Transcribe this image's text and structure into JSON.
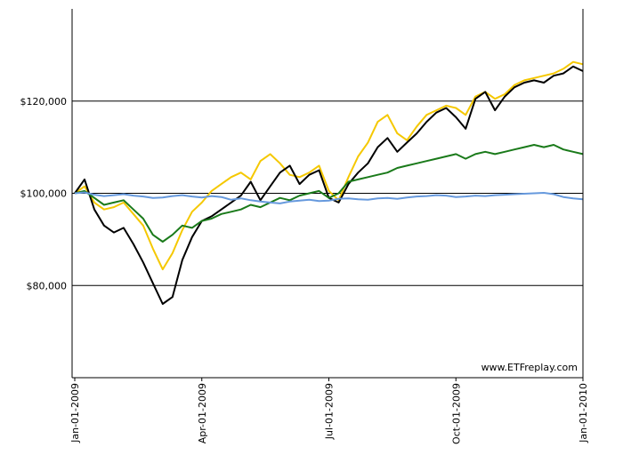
{
  "chart_data": {
    "type": "line",
    "title": "",
    "xlabel": "",
    "ylabel": "",
    "xlim": [
      "Jan-01-2009",
      "Jan-01-2010"
    ],
    "ylim": [
      60000,
      140000
    ],
    "ytick_values": [
      80000,
      100000,
      120000
    ],
    "ytick_labels": [
      "$80,000",
      "$100,000",
      "$120,000"
    ],
    "xtick_labels": [
      "Jan-01-2009",
      "Apr-01-2009",
      "Jul-01-2009",
      "Oct-01-2009",
      "Jan-01-2010"
    ],
    "grid": "horizontal",
    "watermark": "www.ETFreplay.com",
    "x": [
      "Jan-01-2009",
      "Jan-08-2009",
      "Jan-15-2009",
      "Jan-22-2009",
      "Jan-29-2009",
      "Feb-05-2009",
      "Feb-12-2009",
      "Feb-19-2009",
      "Feb-26-2009",
      "Mar-05-2009",
      "Mar-12-2009",
      "Mar-19-2009",
      "Mar-26-2009",
      "Apr-02-2009",
      "Apr-09-2009",
      "Apr-16-2009",
      "Apr-23-2009",
      "Apr-30-2009",
      "May-07-2009",
      "May-14-2009",
      "May-21-2009",
      "May-28-2009",
      "Jun-04-2009",
      "Jun-11-2009",
      "Jun-18-2009",
      "Jun-25-2009",
      "Jul-02-2009",
      "Jul-09-2009",
      "Jul-16-2009",
      "Jul-23-2009",
      "Jul-30-2009",
      "Aug-06-2009",
      "Aug-13-2009",
      "Aug-20-2009",
      "Aug-27-2009",
      "Sep-03-2009",
      "Sep-10-2009",
      "Sep-17-2009",
      "Sep-24-2009",
      "Oct-01-2009",
      "Oct-08-2009",
      "Oct-15-2009",
      "Oct-22-2009",
      "Oct-29-2009",
      "Nov-05-2009",
      "Nov-12-2009",
      "Nov-19-2009",
      "Nov-26-2009",
      "Dec-03-2009",
      "Dec-10-2009",
      "Dec-17-2009",
      "Dec-24-2009",
      "Dec-31-2009"
    ],
    "series": [
      {
        "color": "#f5c800",
        "values": [
          100000,
          101500,
          98000,
          96500,
          97000,
          98000,
          95500,
          93000,
          88000,
          83500,
          87000,
          92000,
          96000,
          98000,
          100500,
          102000,
          103500,
          104500,
          103000,
          107000,
          108500,
          106500,
          104000,
          103500,
          104500,
          106000,
          100500,
          98500,
          103500,
          108000,
          111000,
          115500,
          117000,
          113000,
          111500,
          114500,
          117000,
          118000,
          119000,
          118500,
          117000,
          121000,
          122000,
          120500,
          121500,
          123500,
          124500,
          125000,
          125500,
          126000,
          127000,
          128500,
          128000
        ]
      },
      {
        "color": "#000000",
        "values": [
          100000,
          103000,
          96500,
          93000,
          91500,
          92500,
          89000,
          85000,
          80500,
          76000,
          77500,
          85500,
          90500,
          94000,
          95000,
          96500,
          98000,
          99500,
          102500,
          98500,
          101500,
          104500,
          106000,
          102000,
          104000,
          105000,
          99000,
          98000,
          102000,
          104500,
          106500,
          110000,
          112000,
          109000,
          111000,
          113000,
          115500,
          117500,
          118500,
          116500,
          114000,
          120500,
          122000,
          118000,
          121000,
          123000,
          124000,
          124500,
          124000,
          125500,
          126000,
          127500,
          126500
        ]
      },
      {
        "color": "#1a7a1a",
        "values": [
          100000,
          100500,
          99000,
          97500,
          98000,
          98500,
          96500,
          94500,
          91000,
          89500,
          91000,
          93000,
          92500,
          94000,
          94500,
          95500,
          96000,
          96500,
          97500,
          97000,
          98000,
          99000,
          98500,
          99500,
          100000,
          100500,
          99000,
          100000,
          102500,
          103000,
          103500,
          104000,
          104500,
          105500,
          106000,
          106500,
          107000,
          107500,
          108000,
          108500,
          107500,
          108500,
          109000,
          108500,
          109000,
          109500,
          110000,
          110500,
          110000,
          110500,
          109500,
          109000,
          108500
        ]
      },
      {
        "color": "#6699dd",
        "values": [
          100000,
          100200,
          99700,
          99400,
          99600,
          99800,
          99500,
          99300,
          99000,
          99100,
          99400,
          99600,
          99300,
          99100,
          99400,
          99200,
          98600,
          98900,
          98500,
          98200,
          98000,
          97800,
          98200,
          98400,
          98600,
          98300,
          98400,
          98800,
          98900,
          98700,
          98600,
          98900,
          99000,
          98800,
          99100,
          99300,
          99400,
          99600,
          99500,
          99200,
          99300,
          99500,
          99400,
          99600,
          99700,
          99800,
          99900,
          100000,
          100100,
          99800,
          99200,
          98900,
          98700
        ]
      }
    ]
  }
}
